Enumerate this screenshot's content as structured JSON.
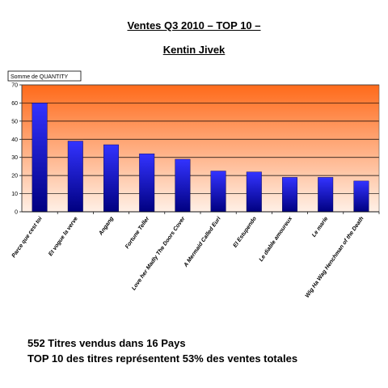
{
  "header": {
    "title": "Ventes Q3 2010 – TOP 10 –",
    "subtitle": "Kentin Jivek"
  },
  "chart_data": {
    "type": "bar",
    "field_button": "Somme de QUANTITY",
    "categories": [
      "Parce que cest toi",
      "Et vogue la verve",
      "Angang",
      "Fortune Teller",
      "Love her Madly The Doors Cover",
      "A Mermaid Called Euri",
      "El Estupendo",
      "Le diable amoureux",
      "Le marie",
      "Wig Ha Wag Henchman of the Death"
    ],
    "values": [
      60,
      39,
      37,
      32,
      29,
      22.5,
      22,
      19,
      19,
      17
    ],
    "ylim": [
      0,
      70
    ],
    "yticks": [
      0,
      10,
      20,
      30,
      40,
      50,
      60,
      70
    ],
    "grid": true,
    "legend": "none",
    "colors": {
      "bar_top": "#3333ff",
      "bar_bottom": "#000080",
      "bg_top": "#ff6a1a",
      "bg_bottom": "#fff0e6",
      "gridline": "#000000"
    }
  },
  "footer": {
    "line1": "552 Titres vendus dans 16 Pays",
    "line2": "TOP 10 des titres représentent 53% des ventes totales"
  }
}
